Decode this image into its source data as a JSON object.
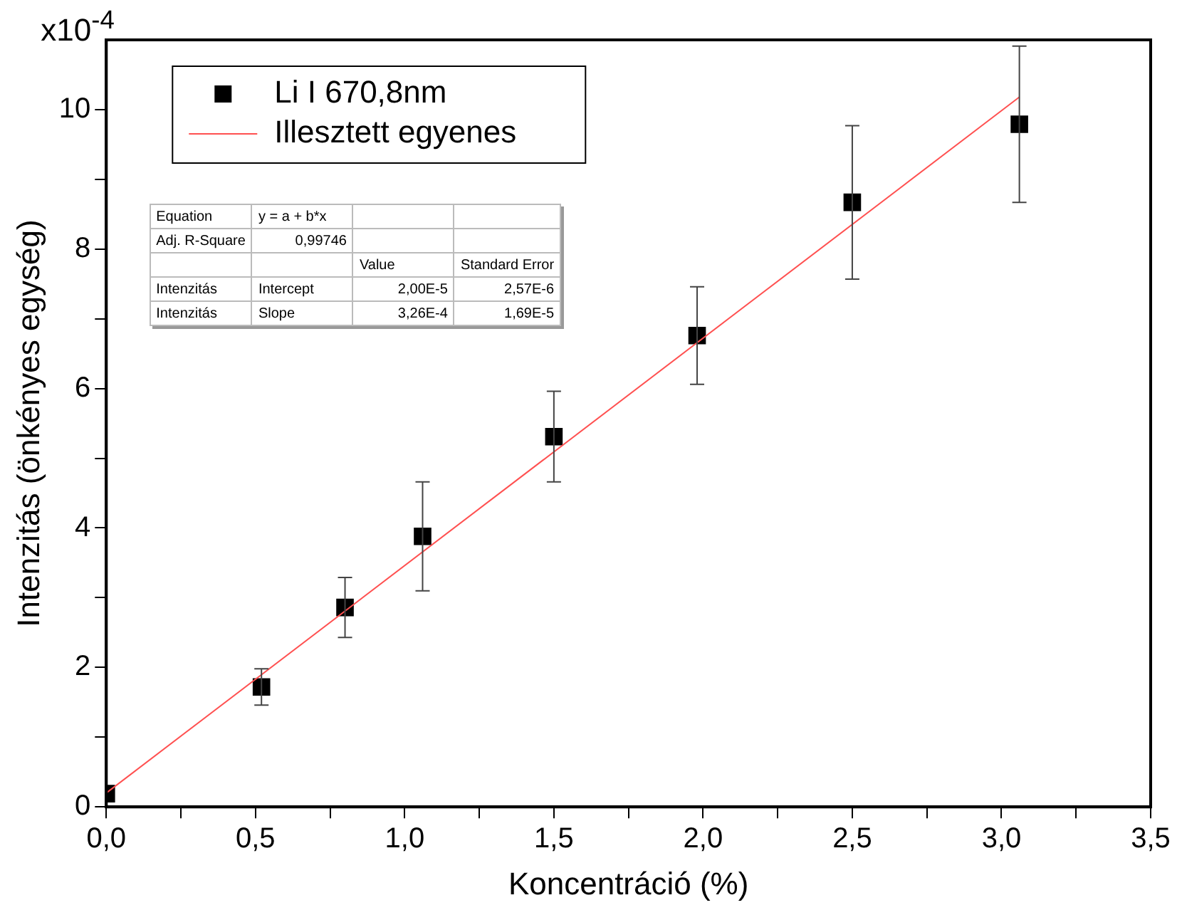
{
  "chart_data": {
    "type": "scatter",
    "xlabel": "Koncentráció (%)",
    "ylabel": "Intenzitás (önkényes egység)",
    "series": [
      {
        "name": "Li I 670,8nm",
        "type": "scatter",
        "color": "#000000",
        "marker": "square",
        "x": [
          0,
          0.52,
          0.8,
          1.06,
          1.5,
          1.98,
          2.5,
          3.06
        ],
        "values": [
          0.19,
          1.72,
          2.86,
          3.88,
          5.31,
          6.76,
          8.67,
          9.79
        ],
        "errors": [
          null,
          0.26,
          0.43,
          0.78,
          0.65,
          0.7,
          1.1,
          1.12
        ]
      },
      {
        "name": "Illesztett egyenes",
        "type": "line",
        "color": "#ff5050",
        "marker": "none",
        "line_style": "solid",
        "x": [
          0,
          3.06
        ],
        "values": [
          0.2,
          10.18
        ]
      }
    ],
    "xlim": [
      0,
      3.5
    ],
    "xticks": [
      {
        "value": 0,
        "label": "0,0"
      },
      {
        "value": 0.25,
        "label": null
      },
      {
        "value": 0.5,
        "label": "0,5"
      },
      {
        "value": 0.75,
        "label": null
      },
      {
        "value": 1,
        "label": "1,0"
      },
      {
        "value": 1.25,
        "label": null
      },
      {
        "value": 1.5,
        "label": "1,5"
      },
      {
        "value": 1.75,
        "label": null
      },
      {
        "value": 2,
        "label": "2,0"
      },
      {
        "value": 2.25,
        "label": null
      },
      {
        "value": 2.5,
        "label": "2,5"
      },
      {
        "value": 2.75,
        "label": null
      },
      {
        "value": 3,
        "label": "3,0"
      },
      {
        "value": 3.25,
        "label": null
      },
      {
        "value": 3.5,
        "label": "3,5"
      }
    ],
    "ylim": [
      0,
      11
    ],
    "yticks": [
      0,
      {
        "value": 1,
        "label": null
      },
      2,
      {
        "value": 3,
        "label": null
      },
      4,
      {
        "value": 5,
        "label": null
      },
      6,
      {
        "value": 7,
        "label": null
      },
      8,
      {
        "value": 9,
        "label": null
      },
      10
    ],
    "grid": false,
    "legend": "top left",
    "annotations": [
      "x10$^{-4}$",
      "Equation",
      "y = a + b*x",
      "Adj. R-Square",
      "0,99746",
      "Value",
      "Standard Error",
      "Intenzitás",
      "Intercept",
      "2,00E-5",
      "2,57E-6",
      "Intenzitás",
      "Slope",
      "3,26E-4",
      "1,69E-5"
    ]
  }
}
